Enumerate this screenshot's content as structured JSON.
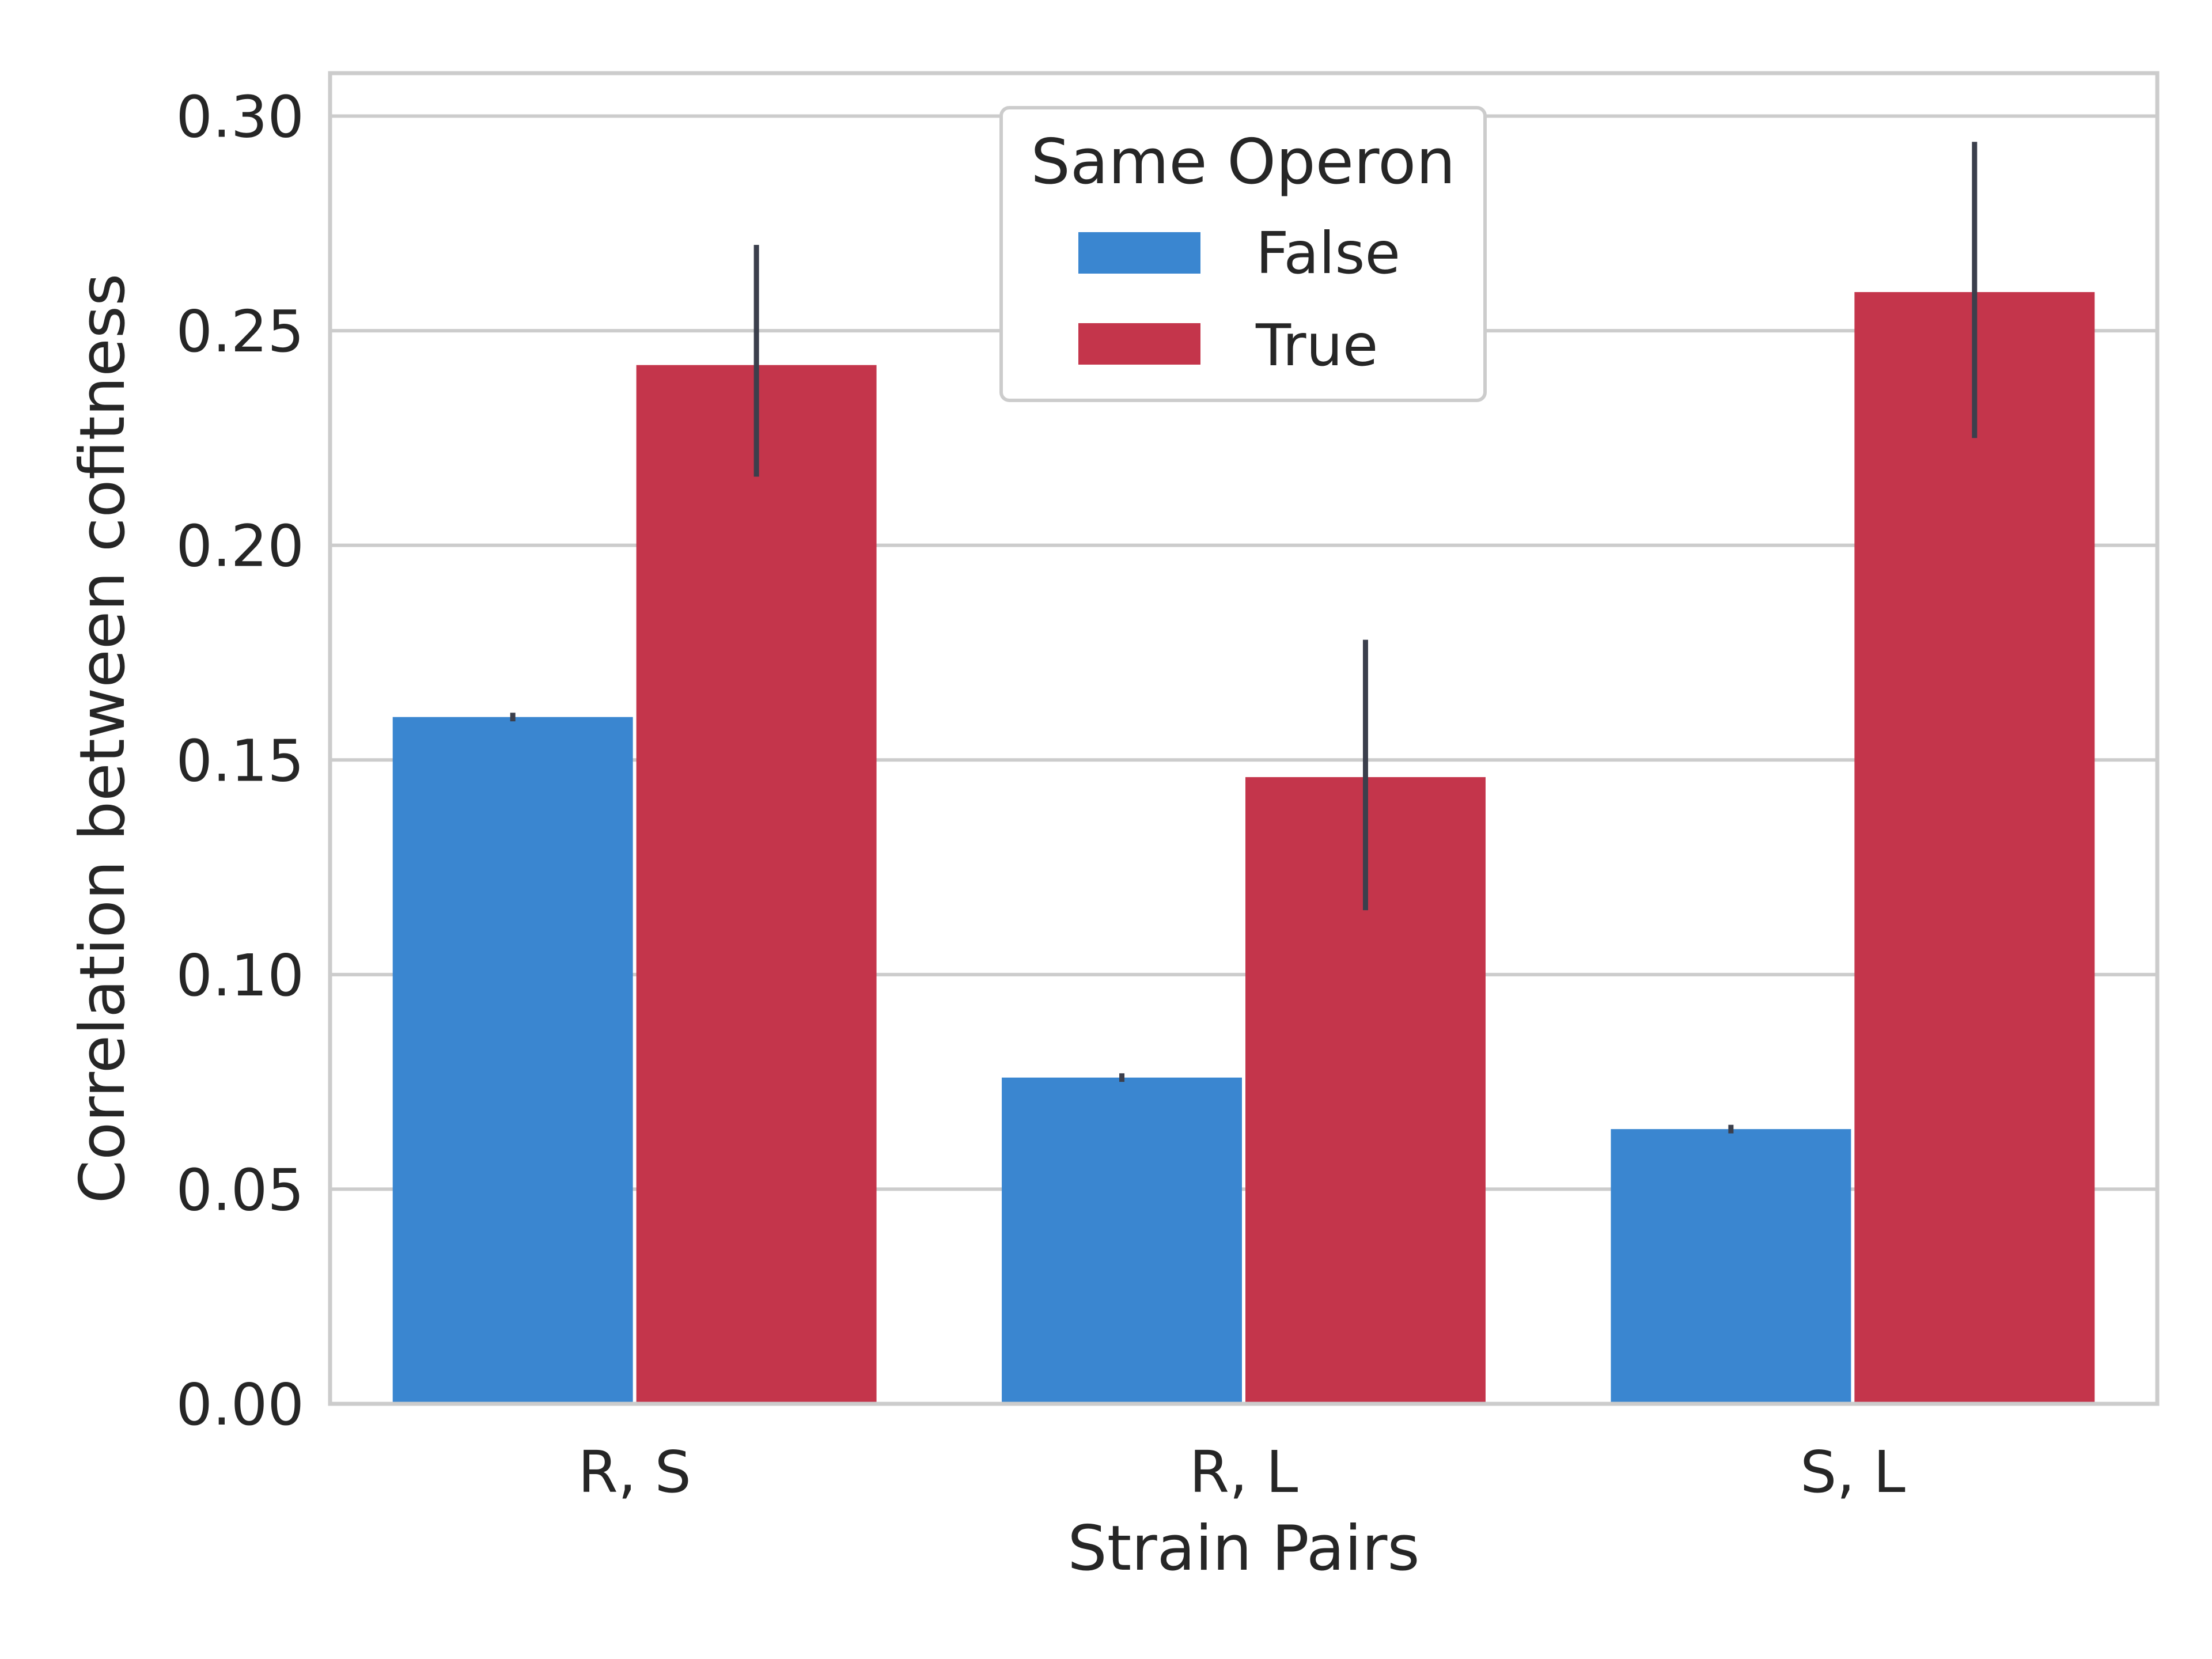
{
  "chart_data": {
    "type": "bar",
    "xlabel": "Strain Pairs",
    "ylabel": "Correlation between cofitness",
    "categories": [
      "R, S",
      "R, L",
      "S, L"
    ],
    "ylim": [
      0,
      0.31
    ],
    "yticks": [
      "0.00",
      "0.05",
      "0.10",
      "0.15",
      "0.20",
      "0.25",
      "0.30"
    ],
    "ytick_values": [
      0,
      0.05,
      0.1,
      0.15,
      0.2,
      0.25,
      0.3
    ],
    "grid": true,
    "legend": {
      "title": "Same Operon",
      "placement": "upper-center"
    },
    "series": [
      {
        "name": "False",
        "color": "#3a86d0",
        "values": [
          0.16,
          0.076,
          0.064
        ],
        "err_low": [
          0.159,
          0.075,
          0.063
        ],
        "err_high": [
          0.161,
          0.077,
          0.065
        ]
      },
      {
        "name": "True",
        "color": "#c4354b",
        "values": [
          0.242,
          0.146,
          0.259
        ],
        "err_low": [
          0.216,
          0.115,
          0.225
        ],
        "err_high": [
          0.27,
          0.178,
          0.294
        ]
      }
    ]
  }
}
